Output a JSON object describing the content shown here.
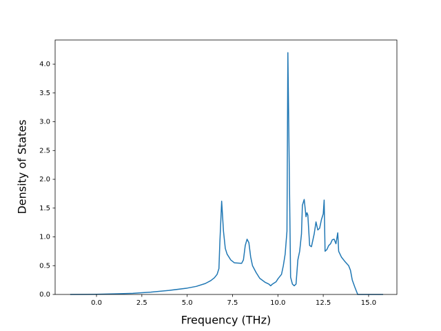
{
  "chart_data": {
    "type": "line",
    "xlabel": "Frequency (THz)",
    "ylabel": "Density of States",
    "x": [
      -1.45,
      0,
      1,
      2,
      3,
      4,
      5,
      5.5,
      6,
      6.3,
      6.5,
      6.65,
      6.75,
      6.8,
      6.9,
      7.0,
      7.1,
      7.2,
      7.4,
      7.6,
      8.0,
      8.1,
      8.2,
      8.3,
      8.4,
      8.5,
      8.6,
      8.8,
      9.0,
      9.3,
      9.5,
      9.6,
      9.7,
      9.9,
      10.0,
      10.2,
      10.3,
      10.4,
      10.5,
      10.55,
      10.65,
      10.7,
      10.8,
      10.9,
      11.0,
      11.1,
      11.2,
      11.3,
      11.35,
      11.45,
      11.55,
      11.6,
      11.65,
      11.75,
      11.85,
      12.0,
      12.1,
      12.2,
      12.3,
      12.4,
      12.5,
      12.55,
      12.6,
      12.7,
      12.8,
      12.9,
      13.0,
      13.1,
      13.2,
      13.3,
      13.35,
      13.5,
      13.7,
      13.9,
      14.0,
      14.1,
      14.25,
      14.4,
      15.8
    ],
    "values": [
      0,
      0.003,
      0.01,
      0.02,
      0.04,
      0.07,
      0.11,
      0.14,
      0.19,
      0.24,
      0.29,
      0.35,
      0.45,
      0.9,
      1.62,
      1.1,
      0.8,
      0.7,
      0.6,
      0.55,
      0.54,
      0.6,
      0.85,
      0.96,
      0.9,
      0.65,
      0.5,
      0.38,
      0.28,
      0.21,
      0.18,
      0.15,
      0.18,
      0.22,
      0.27,
      0.35,
      0.5,
      0.7,
      1.1,
      4.2,
      1.6,
      0.3,
      0.18,
      0.15,
      0.18,
      0.6,
      0.75,
      1.05,
      1.55,
      1.65,
      1.35,
      1.42,
      1.38,
      0.85,
      0.83,
      1.05,
      1.26,
      1.12,
      1.15,
      1.3,
      1.4,
      1.64,
      0.75,
      0.78,
      0.85,
      0.88,
      0.95,
      0.96,
      0.88,
      1.07,
      0.75,
      0.65,
      0.57,
      0.5,
      0.42,
      0.25,
      0.12,
      0,
      0
    ],
    "color": "#1f77b4",
    "xlim": [
      -2.28,
      16.56
    ],
    "ylim": [
      0,
      4.42
    ],
    "xticks": [
      {
        "value": 0,
        "label": "0.0"
      },
      2.5,
      {
        "value": 5,
        "label": "5.0"
      },
      7.5,
      {
        "value": 10,
        "label": "10.0"
      },
      12.5,
      {
        "value": 15,
        "label": "15.0"
      }
    ],
    "yticks": [
      {
        "value": 0,
        "label": "0.0"
      },
      0.5,
      {
        "value": 1,
        "label": "1.0"
      },
      1.5,
      {
        "value": 2,
        "label": "2.0"
      },
      2.5,
      {
        "value": 3,
        "label": "3.0"
      },
      3.5,
      {
        "value": 4,
        "label": "4.0"
      }
    ]
  }
}
